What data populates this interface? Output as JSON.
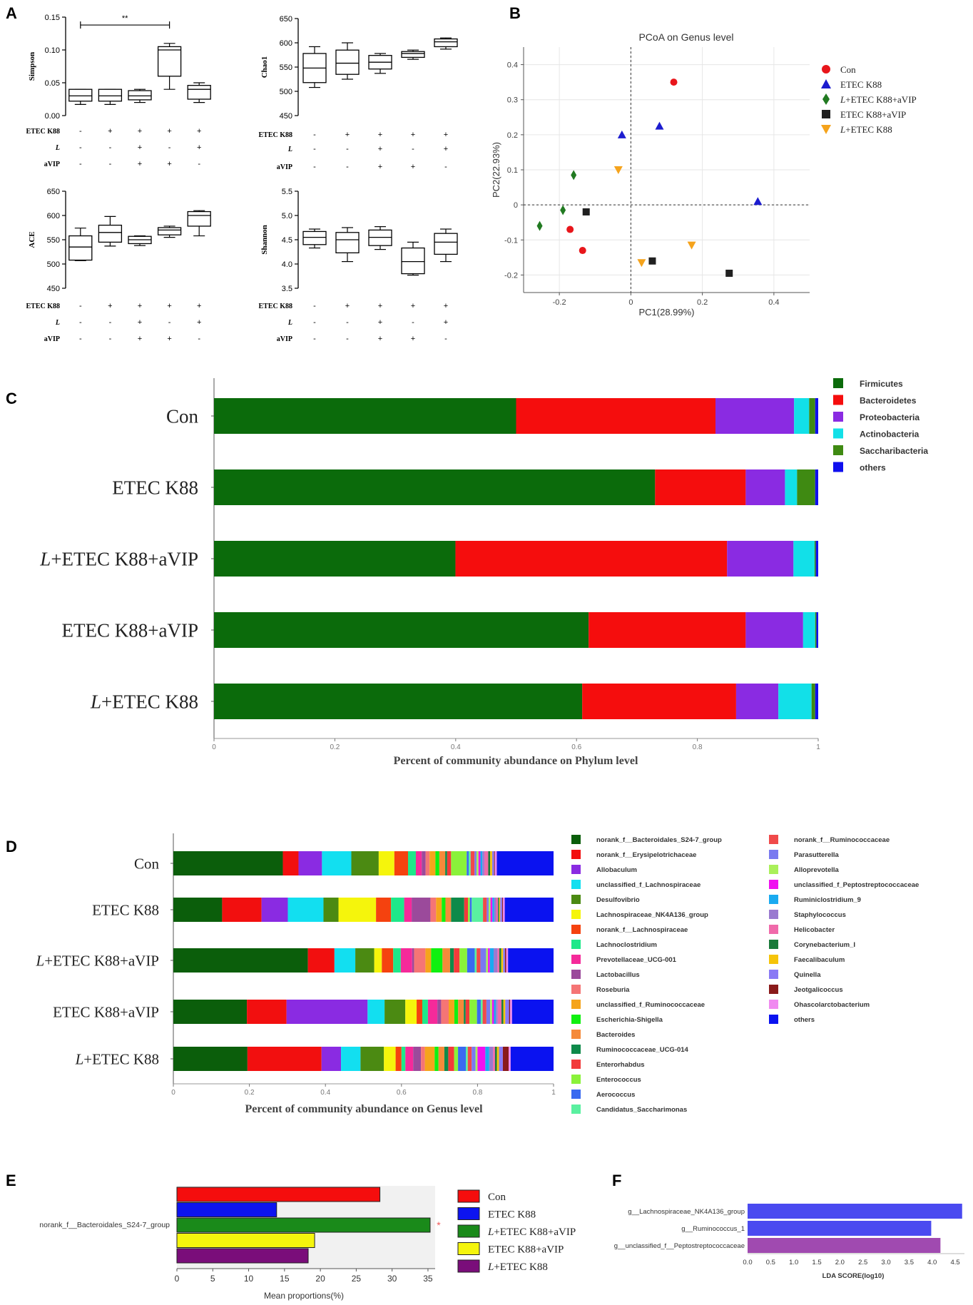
{
  "panels": {
    "A": "A",
    "B": "B",
    "C": "C",
    "D": "D",
    "E": "E",
    "F": "F"
  },
  "chart_data": [
    {
      "id": "A",
      "type": "boxplot",
      "sign_labels": [
        "ETEC K88",
        "L",
        "aVIP"
      ],
      "groups_design": {
        "ETEC K88": [
          "-",
          "+",
          "+",
          "+",
          "+"
        ],
        "L": [
          "-",
          "-",
          "+",
          "-",
          "+"
        ],
        "aVIP": [
          "-",
          "-",
          "+",
          "+",
          "-"
        ]
      },
      "subplots": [
        {
          "ylabel": "Simpson",
          "ylim": [
            0,
            0.15
          ],
          "yticks": [
            "0.00",
            "0.05",
            "0.10",
            "0.15"
          ],
          "significance": "**",
          "boxes": [
            [
              0.017,
              0.022,
              0.03,
              0.04,
              0.04
            ],
            [
              0.017,
              0.022,
              0.03,
              0.04,
              0.04
            ],
            [
              0.02,
              0.024,
              0.03,
              0.038,
              0.04
            ],
            [
              0.04,
              0.06,
              0.1,
              0.105,
              0.11
            ],
            [
              0.02,
              0.025,
              0.04,
              0.046,
              0.05
            ]
          ]
        },
        {
          "ylabel": "Chao1",
          "ylim": [
            450,
            650
          ],
          "yticks": [
            "450",
            "500",
            "550",
            "600",
            "650"
          ],
          "boxes": [
            [
              508,
              518,
              548,
              578,
              592
            ],
            [
              525,
              535,
              558,
              585,
              600
            ],
            [
              537,
              546,
              560,
              574,
              578
            ],
            [
              566,
              570,
              578,
              582,
              585
            ],
            [
              587,
              592,
              602,
              608,
              610
            ]
          ]
        },
        {
          "ylabel": "ACE",
          "ylim": [
            450,
            650
          ],
          "yticks": [
            "450",
            "500",
            "550",
            "600",
            "650"
          ],
          "boxes": [
            [
              507,
              508,
              535,
              558,
              574
            ],
            [
              537,
              545,
              565,
              580,
              598
            ],
            [
              538,
              542,
              550,
              557,
              558
            ],
            [
              555,
              560,
              570,
              575,
              578
            ],
            [
              558,
              578,
              600,
              608,
              610
            ]
          ]
        },
        {
          "ylabel": "Shannon",
          "ylim": [
            3.5,
            5.5
          ],
          "yticks": [
            "3.5",
            "4.0",
            "4.5",
            "5.0",
            "5.5"
          ],
          "boxes": [
            [
              4.33,
              4.4,
              4.55,
              4.67,
              4.72
            ],
            [
              4.05,
              4.23,
              4.5,
              4.65,
              4.75
            ],
            [
              4.3,
              4.38,
              4.55,
              4.7,
              4.77
            ],
            [
              3.77,
              3.8,
              4.05,
              4.33,
              4.45
            ],
            [
              4.05,
              4.2,
              4.45,
              4.63,
              4.72
            ]
          ]
        }
      ]
    },
    {
      "id": "B",
      "type": "scatter",
      "title": "PCoA on Genus level",
      "xlabel": "PC1(28.99%)",
      "ylabel": "PC2(22.93%)",
      "xlim": [
        -0.3,
        0.5
      ],
      "ylim": [
        -0.25,
        0.45
      ],
      "xticks": [
        "-0.2",
        "0",
        "0.2",
        "0.4"
      ],
      "yticks": [
        "-0.2",
        "-0.1",
        "0",
        "0.1",
        "0.2",
        "0.3",
        "0.4"
      ],
      "series": [
        {
          "name": "Con",
          "color": "#e8161b",
          "marker": "circle",
          "points": [
            [
              0.12,
              0.35
            ],
            [
              -0.17,
              -0.07
            ],
            [
              -0.135,
              -0.13
            ]
          ]
        },
        {
          "name": "ETEC K88",
          "color": "#1c1ccf",
          "marker": "triangle",
          "points": [
            [
              -0.025,
              0.2
            ],
            [
              0.08,
              0.225
            ],
            [
              0.355,
              0.01
            ]
          ]
        },
        {
          "name": "L+ETEC K88+aVIP",
          "color": "#217a21",
          "marker": "diamond",
          "points": [
            [
              -0.16,
              0.085
            ],
            [
              -0.19,
              -0.015
            ],
            [
              -0.255,
              -0.06
            ]
          ]
        },
        {
          "name": "ETEC K88+aVIP",
          "color": "#202020",
          "marker": "square",
          "points": [
            [
              -0.125,
              -0.02
            ],
            [
              0.06,
              -0.16
            ],
            [
              0.275,
              -0.195
            ]
          ]
        },
        {
          "name": "L+ETEC K88",
          "color": "#f5a31c",
          "marker": "invtriangle",
          "points": [
            [
              -0.035,
              0.1
            ],
            [
              0.03,
              -0.165
            ],
            [
              0.17,
              -0.115
            ]
          ]
        }
      ]
    },
    {
      "id": "C",
      "type": "bar",
      "stacked": true,
      "orientation": "horizontal",
      "xlabel": "Percent of community abundance on Phylum level",
      "xlim": [
        0,
        1
      ],
      "xticks": [
        "0",
        "0.2",
        "0.4",
        "0.6",
        "0.8",
        "1"
      ],
      "categories": [
        "Con",
        "ETEC K88",
        "L+ETEC K88+aVIP",
        "ETEC K88+aVIP",
        "L+ETEC K88"
      ],
      "series": [
        {
          "name": "Firmicutes",
          "color": "#0b6b0b",
          "values": [
            0.5,
            0.73,
            0.4,
            0.62,
            0.61
          ]
        },
        {
          "name": "Bacteroidetes",
          "color": "#f50d0d",
          "values": [
            0.33,
            0.15,
            0.45,
            0.26,
            0.255
          ]
        },
        {
          "name": "Proteobacteria",
          "color": "#8a2be2",
          "values": [
            0.13,
            0.065,
            0.11,
            0.095,
            0.07
          ]
        },
        {
          "name": "Actinobacteria",
          "color": "#12e0e8",
          "values": [
            0.025,
            0.02,
            0.035,
            0.02,
            0.055
          ]
        },
        {
          "name": "Saccharibacteria",
          "color": "#3f8a12",
          "values": [
            0.01,
            0.03,
            0.002,
            0.002,
            0.006
          ]
        },
        {
          "name": "others",
          "color": "#0f0fee",
          "values": [
            0.005,
            0.005,
            0.004,
            0.003,
            0.005
          ]
        }
      ]
    },
    {
      "id": "D",
      "type": "bar",
      "stacked": true,
      "orientation": "horizontal",
      "xlabel": "Percent of community abundance on Genus level",
      "xlim": [
        0,
        1
      ],
      "xticks": [
        "0",
        "0.2",
        "0.4",
        "0.6",
        "0.8",
        "1"
      ],
      "categories": [
        "Con",
        "ETEC K88",
        "L+ETEC K88+aVIP",
        "ETEC K88+aVIP",
        "L+ETEC K88"
      ],
      "series": [
        {
          "name": "norank_f__Bacteroidales_S24-7_group",
          "color": "#0b5e0b",
          "values": [
            0.28,
            0.13,
            0.355,
            0.195,
            0.19
          ]
        },
        {
          "name": "norank_f__Erysipelotrichaceae",
          "color": "#f20f0f",
          "values": [
            0.04,
            0.105,
            0.07,
            0.105,
            0.19
          ]
        },
        {
          "name": "Allobaculum",
          "color": "#8a2be2",
          "values": [
            0.06,
            0.07,
            0.0,
            0.215,
            0.05
          ]
        },
        {
          "name": "unclassified_f_Lachnospiraceae",
          "color": "#12dff0",
          "values": [
            0.075,
            0.095,
            0.055,
            0.045,
            0.05
          ]
        },
        {
          "name": "Desulfovibrio",
          "color": "#4b8a12",
          "values": [
            0.07,
            0.04,
            0.05,
            0.055,
            0.06
          ]
        },
        {
          "name": "Lachnospiraceae_NK4A136_group",
          "color": "#f5f50c",
          "values": [
            0.04,
            0.1,
            0.02,
            0.03,
            0.03
          ]
        },
        {
          "name": "norank_f__Lachnospiraceae",
          "color": "#f5420f",
          "values": [
            0.035,
            0.04,
            0.03,
            0.015,
            0.015
          ]
        },
        {
          "name": "Lachnoclostridium",
          "color": "#1ee88a",
          "values": [
            0.02,
            0.035,
            0.02,
            0.015,
            0.01
          ]
        },
        {
          "name": "Prevotellaceae_UCG-001",
          "color": "#f52a9a",
          "values": [
            0.015,
            0.02,
            0.03,
            0.025,
            0.02
          ]
        },
        {
          "name": "Lactobacillus",
          "color": "#9b4a9b",
          "values": [
            0.01,
            0.05,
            0.005,
            0.01,
            0.02
          ]
        },
        {
          "name": "Roseburia",
          "color": "#f57575",
          "values": [
            0.01,
            0.015,
            0.03,
            0.02,
            0.01
          ]
        },
        {
          "name": "unclassified_f_Ruminococcaceae",
          "color": "#f5a41c",
          "values": [
            0.015,
            0.015,
            0.015,
            0.015,
            0.025
          ]
        },
        {
          "name": "Escherichia-Shigella",
          "color": "#10f010",
          "values": [
            0.01,
            0.01,
            0.03,
            0.01,
            0.01
          ]
        },
        {
          "name": "Bacteroides",
          "color": "#f58a3a",
          "values": [
            0.015,
            0.015,
            0.02,
            0.015,
            0.015
          ]
        },
        {
          "name": "Ruminococcaceae_UCG-014",
          "color": "#0e8a4a",
          "values": [
            0.005,
            0.035,
            0.01,
            0.005,
            0.01
          ]
        },
        {
          "name": "Enterorhabdus",
          "color": "#f23a3a",
          "values": [
            0.01,
            0.01,
            0.015,
            0.01,
            0.015
          ]
        },
        {
          "name": "Enterococcus",
          "color": "#8af23a",
          "values": [
            0.04,
            0.005,
            0.02,
            0.02,
            0.01
          ]
        },
        {
          "name": "Aerococcus",
          "color": "#3a6af0",
          "values": [
            0.005,
            0.005,
            0.02,
            0.01,
            0.02
          ]
        },
        {
          "name": "Candidatus_Saccharimonas",
          "color": "#5af0a0",
          "values": [
            0.005,
            0.03,
            0.005,
            0.005,
            0.005
          ]
        },
        {
          "name": "norank_f__Ruminococcaceae",
          "color": "#f04a4a",
          "values": [
            0.01,
            0.01,
            0.01,
            0.01,
            0.01
          ]
        },
        {
          "name": "Parasutterella",
          "color": "#7a7af0",
          "values": [
            0.005,
            0.005,
            0.015,
            0.01,
            0.01
          ]
        },
        {
          "name": "Alloprevotella",
          "color": "#aaf05a",
          "values": [
            0.005,
            0.005,
            0.005,
            0.005,
            0.005
          ]
        },
        {
          "name": "unclassified_f_Peptostreptococcaceae",
          "color": "#f010f0",
          "values": [
            0.005,
            0.005,
            0.005,
            0.005,
            0.02
          ]
        },
        {
          "name": "Ruminiclostridium_9",
          "color": "#1aaaf0",
          "values": [
            0.005,
            0.005,
            0.01,
            0.005,
            0.01
          ]
        },
        {
          "name": "Staphylococcus",
          "color": "#9a7ad0",
          "values": [
            0.005,
            0.005,
            0.01,
            0.005,
            0.01
          ]
        },
        {
          "name": "Helicobacter",
          "color": "#f06aaa",
          "values": [
            0.01,
            0.005,
            0.005,
            0.01,
            0.005
          ]
        },
        {
          "name": "Corynebacterium_I",
          "color": "#1a7a3a",
          "values": [
            0.005,
            0.003,
            0.005,
            0.005,
            0.005
          ]
        },
        {
          "name": "Faecalibaculum",
          "color": "#f5c40a",
          "values": [
            0.005,
            0.003,
            0.005,
            0.005,
            0.005
          ]
        },
        {
          "name": "Quinella",
          "color": "#8a7af5",
          "values": [
            0.005,
            0.005,
            0.005,
            0.01,
            0.01
          ]
        },
        {
          "name": "Jeotgalicoccus",
          "color": "#8a1a1a",
          "values": [
            0.002,
            0.002,
            0.003,
            0.003,
            0.015
          ]
        },
        {
          "name": "Ohascolarctobacterium",
          "color": "#f08af0",
          "values": [
            0.005,
            0.005,
            0.005,
            0.005,
            0.005
          ]
        },
        {
          "name": "others",
          "color": "#0a12f0",
          "values": [
            0.145,
            0.13,
            0.12,
            0.11,
            0.11
          ]
        }
      ]
    },
    {
      "id": "E",
      "type": "bar",
      "orientation": "horizontal",
      "xlabel": "Mean proportions(%)",
      "xlim": [
        0,
        36
      ],
      "xticks": [
        "0",
        "5",
        "10",
        "15",
        "20",
        "25",
        "30",
        "35"
      ],
      "feature": "norank_f__Bacteroidales_S24-7_group",
      "significance_mark": "*",
      "series": [
        {
          "name": "Con",
          "color": "#f50d0d",
          "value": 28.3
        },
        {
          "name": "ETEC K88",
          "color": "#0d14f0",
          "value": 13.9
        },
        {
          "name": "L+ETEC K88+aVIP",
          "color": "#1a8a1a",
          "value": 35.3
        },
        {
          "name": "ETEC K88+aVIP",
          "color": "#f5f50d",
          "value": 19.2
        },
        {
          "name": "L+ETEC K88",
          "color": "#7a0d7a",
          "value": 18.3
        }
      ]
    },
    {
      "id": "F",
      "type": "bar",
      "orientation": "horizontal",
      "xlabel": "LDA SCORE(log10)",
      "xlim": [
        0,
        4.7
      ],
      "xticks": [
        "0.0",
        "0.5",
        "1.0",
        "1.5",
        "2.0",
        "2.5",
        "3.0",
        "3.5",
        "4.0",
        "4.5"
      ],
      "categories": [
        "g__Lachnospiraceae_NK4A136_group",
        "g__Ruminococcus_1",
        "g__unclassified_f__Peptostreptococcaceae"
      ],
      "values": [
        4.65,
        3.98,
        4.18
      ],
      "colors": [
        "#4a4af0",
        "#4a4af0",
        "#a04ab0"
      ]
    }
  ]
}
